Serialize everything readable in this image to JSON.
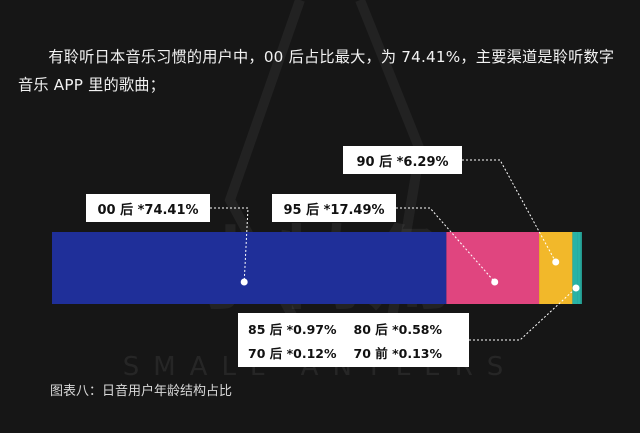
{
  "description": "有聆听日本音乐习惯的用户中，00 后占比最大，为 74.41%，主要渠道是聆听数字音乐 APP 里的歌曲；",
  "caption": "图表八：日音用户年龄结构占比",
  "watermark": {
    "logo_text": "小犄角",
    "brand": "SMALL ANTLERS"
  },
  "chart_data": {
    "type": "bar",
    "orientation": "horizontal-stacked",
    "series": [
      {
        "name": "00 后",
        "value": 74.41,
        "color": "#1f2f99",
        "label": "00 后 *74.41%"
      },
      {
        "name": "95 后",
        "value": 17.49,
        "color": "#e0457f",
        "label": "95 后 *17.49%"
      },
      {
        "name": "90 后",
        "value": 6.29,
        "color": "#f2b82a",
        "label": "90 后 *6.29%"
      },
      {
        "name": "85 后",
        "value": 0.97,
        "color": "#28b3a6",
        "label": "85 后 *0.97%"
      },
      {
        "name": "80 后",
        "value": 0.58,
        "color": "#28b3a6",
        "label": "80 后 *0.58%"
      },
      {
        "name": "70 后",
        "value": 0.12,
        "color": "#28b3a6",
        "label": "70 后 *0.12%"
      },
      {
        "name": "70 前",
        "value": 0.13,
        "color": "#28b3a6",
        "label": "70 前 *0.13%"
      }
    ],
    "xlim": [
      0,
      100
    ]
  }
}
